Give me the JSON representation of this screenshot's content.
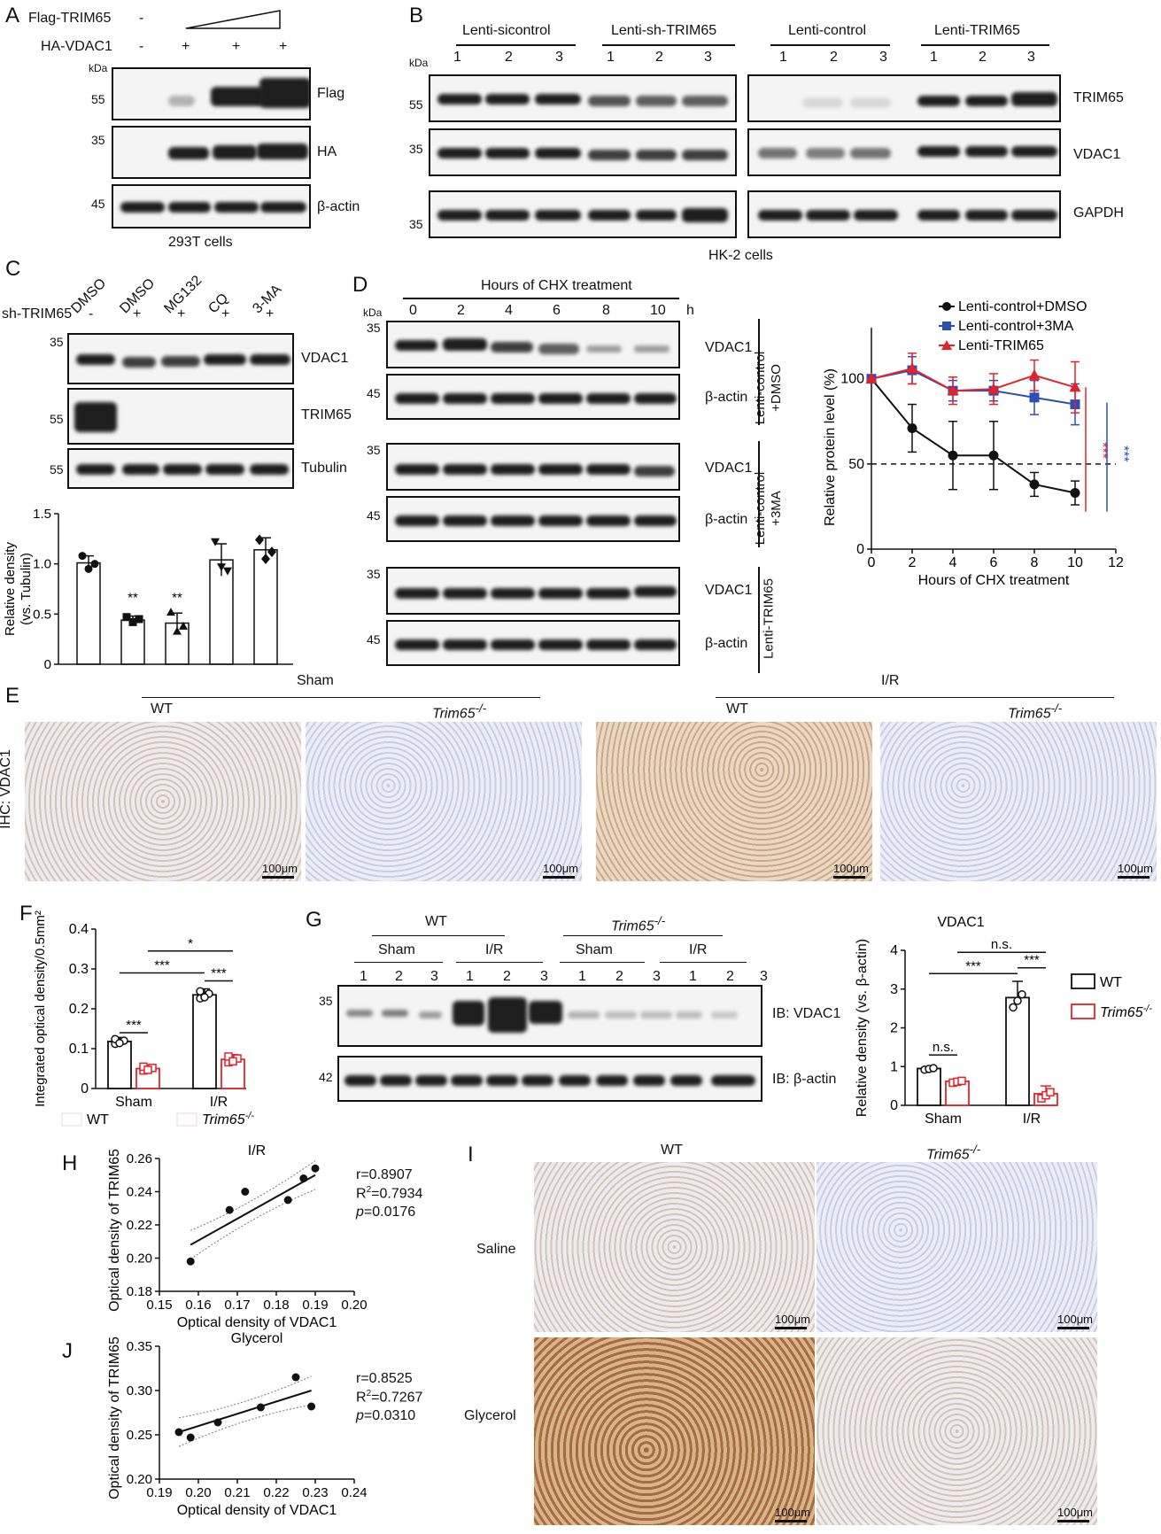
{
  "panelA": {
    "label": "A",
    "row_flag": "Flag-TRIM65",
    "row_ha": "HA-VDAC1",
    "flag_signs": [
      "-"
    ],
    "ha_signs": [
      "-",
      "+",
      "+",
      "+"
    ],
    "kda": "kDa",
    "mw": [
      "55",
      "35",
      "45"
    ],
    "blots": [
      "Flag",
      "HA",
      "β-actin"
    ],
    "caption": "293T cells"
  },
  "panelB": {
    "label": "B",
    "groups": [
      "Lenti-sicontrol",
      "Lenti-sh-TRIM65",
      "Lenti-control",
      "Lenti-TRIM65"
    ],
    "lanes": [
      "1",
      "2",
      "3"
    ],
    "kda": "kDa",
    "mw": [
      "55",
      "35",
      "35"
    ],
    "blots": [
      "TRIM65",
      "VDAC1",
      "GAPDH"
    ],
    "caption": "HK-2 cells"
  },
  "panelC": {
    "label": "C",
    "treatments": [
      "DMSO",
      "DMSO",
      "MG132",
      "CQ",
      "3-MA"
    ],
    "sh_label": "sh-TRIM65",
    "sh_signs": [
      "-",
      "+",
      "+",
      "+",
      "+"
    ],
    "mw": [
      "35",
      "55",
      "55"
    ],
    "blots": [
      "VDAC1",
      "TRIM65",
      "Tubulin"
    ],
    "sig": [
      "**",
      "**"
    ]
  },
  "panelD": {
    "label": "D",
    "header": "Hours of CHX treatment",
    "hours": [
      "0",
      "2",
      "4",
      "6",
      "8",
      "10"
    ],
    "h": "h",
    "kda": "kDa",
    "mw": [
      "35",
      "45",
      "35",
      "45",
      "35",
      "45"
    ],
    "blots": [
      "VDAC1",
      "β-actin",
      "VDAC1",
      "β-actin",
      "VDAC1",
      "β-actin"
    ],
    "groups": [
      "Lenti-control +DMSO",
      "Lenti-control +3MA",
      "Lenti-TRIM65"
    ],
    "sig_red": "***",
    "sig_blue": "***"
  },
  "panelE": {
    "label": "E",
    "sham": "Sham",
    "ir": "I/R",
    "wt": "WT",
    "ko": "Trim65",
    "ko_sup": "-/-",
    "ylabel": "IHC: VDAC1",
    "scale": "100μm"
  },
  "panelF": {
    "label": "F",
    "sig": [
      "*",
      "***",
      "***",
      "***"
    ],
    "legend": [
      "WT",
      "Trim65"
    ],
    "legend_sup": "-/-"
  },
  "panelG": {
    "label": "G",
    "wt": "WT",
    "ko": "Trim65",
    "ko_sup": "-/-",
    "subgroups": [
      "Sham",
      "I/R",
      "Sham",
      "I/R"
    ],
    "lanes": [
      "1",
      "2",
      "3"
    ],
    "mw": [
      "35",
      "42"
    ],
    "blots": [
      "IB: VDAC1",
      "IB: β-actin"
    ],
    "sig": [
      "n.s.",
      "***",
      "***",
      "n.s."
    ],
    "legend": [
      "WT",
      "Trim65"
    ],
    "legend_sup": "-/-"
  },
  "panelH": {
    "label": "H",
    "stats": [
      "r=0.8907",
      "0.7934",
      "=0.0176"
    ]
  },
  "panelI": {
    "label": "I",
    "wt": "WT",
    "ko": "Trim65",
    "ko_sup": "-/-",
    "rows": [
      "Saline",
      "Glycerol"
    ],
    "scale": "100μm"
  },
  "panelJ": {
    "label": "J",
    "stats": [
      "r=0.8525",
      "0.7267",
      "=0.0310"
    ]
  },
  "chart_data": [
    {
      "id": "C-bar",
      "type": "bar",
      "categories": [
        "DMSO",
        "DMSO+sh",
        "MG132",
        "CQ",
        "3-MA"
      ],
      "values": [
        1.01,
        0.44,
        0.41,
        1.04,
        1.14
      ],
      "errors": [
        0.07,
        0.04,
        0.1,
        0.16,
        0.12
      ],
      "points": [
        [
          1.08,
          0.95,
          1.0
        ],
        [
          0.47,
          0.42,
          0.45
        ],
        [
          0.52,
          0.33,
          0.38
        ],
        [
          1.22,
          0.97,
          0.93
        ],
        [
          1.24,
          1.05,
          1.12
        ]
      ],
      "ylabel": "Relative density (vs. Tubulin)",
      "yticks": [
        "0",
        "0.5",
        "1.0",
        "1.5"
      ],
      "ylim": [
        0,
        1.5
      ]
    },
    {
      "id": "D-line",
      "type": "line",
      "x": [
        0,
        2,
        4,
        6,
        8,
        10
      ],
      "series": [
        {
          "name": "Lenti-control+DMSO",
          "color": "#111111",
          "marker": "circle",
          "values": [
            100,
            71,
            55,
            55,
            38,
            33
          ],
          "errors": [
            0,
            14,
            20,
            20,
            7,
            7
          ]
        },
        {
          "name": "Lenti-control+3MA",
          "color": "#2b4fb5",
          "marker": "square",
          "values": [
            100,
            105,
            93,
            93,
            89,
            85
          ],
          "errors": [
            0,
            8,
            6,
            6,
            10,
            12
          ]
        },
        {
          "name": "Lenti-TRIM65",
          "color": "#e3232b",
          "marker": "triangle",
          "values": [
            100,
            106,
            93,
            94,
            102,
            95
          ],
          "errors": [
            0,
            9,
            8,
            9,
            9,
            15
          ]
        }
      ],
      "xlabel": "Hours of CHX treatment",
      "ylabel": "Relative protein level (%)",
      "xticks": [
        "0",
        "2",
        "4",
        "6",
        "8",
        "10",
        "12"
      ],
      "yticks": [
        "0",
        "50",
        "100"
      ],
      "xlim": [
        0,
        12
      ],
      "ylim": [
        0,
        130
      ],
      "reference_line": 50
    },
    {
      "id": "F-bar",
      "type": "bar",
      "categories": [
        "Sham",
        "I/R"
      ],
      "series": [
        {
          "name": "WT",
          "color": "#111111",
          "values": [
            0.118,
            0.235
          ],
          "errors": [
            0.01,
            0.015
          ]
        },
        {
          "name": "Trim65-/-",
          "color": "#e3232b",
          "values": [
            0.05,
            0.073
          ],
          "errors": [
            0.008,
            0.012
          ]
        }
      ],
      "ylabel": "Integrated optical density/0.5mm²",
      "yticks": [
        "0",
        "0.1",
        "0.2",
        "0.3",
        "0.4"
      ],
      "ylim": [
        0,
        0.4
      ]
    },
    {
      "id": "G-bar",
      "type": "bar",
      "title": "VDAC1",
      "categories": [
        "Sham",
        "I/R"
      ],
      "series": [
        {
          "name": "WT",
          "color": "#111111",
          "values": [
            0.95,
            2.78
          ],
          "errors": [
            0.05,
            0.42
          ]
        },
        {
          "name": "Trim65-/-",
          "color": "#e3232b",
          "values": [
            0.62,
            0.3
          ],
          "errors": [
            0.06,
            0.2
          ]
        }
      ],
      "ylabel": "Relative density (vs. β-actin)",
      "yticks": [
        "0",
        "1",
        "2",
        "3",
        "4"
      ],
      "ylim": [
        0,
        4
      ]
    },
    {
      "id": "H-scatter",
      "type": "scatter",
      "title": "I/R",
      "points": [
        [
          0.158,
          0.198
        ],
        [
          0.168,
          0.229
        ],
        [
          0.172,
          0.24
        ],
        [
          0.183,
          0.235
        ],
        [
          0.187,
          0.248
        ],
        [
          0.19,
          0.254
        ]
      ],
      "fit": [
        [
          0.158,
          0.208
        ],
        [
          0.19,
          0.25
        ]
      ],
      "xlabel": "Optical density of VDAC1",
      "ylabel": "Optical density of TRIM65",
      "xticks": [
        "0.15",
        "0.16",
        "0.17",
        "0.18",
        "0.19",
        "0.20"
      ],
      "yticks": [
        "0.18",
        "0.20",
        "0.22",
        "0.24",
        "0.26"
      ],
      "xlim": [
        0.15,
        0.2
      ],
      "ylim": [
        0.18,
        0.26
      ]
    },
    {
      "id": "J-scatter",
      "type": "scatter",
      "title": "Glycerol",
      "points": [
        [
          0.195,
          0.253
        ],
        [
          0.198,
          0.247
        ],
        [
          0.205,
          0.264
        ],
        [
          0.216,
          0.281
        ],
        [
          0.225,
          0.315
        ],
        [
          0.229,
          0.282
        ]
      ],
      "fit": [
        [
          0.195,
          0.253
        ],
        [
          0.229,
          0.3
        ]
      ],
      "xlabel": "Optical density of VDAC1",
      "ylabel": "Optical density of TRIM65",
      "xticks": [
        "0.19",
        "0.20",
        "0.21",
        "0.22",
        "0.23",
        "0.24"
      ],
      "yticks": [
        "0.20",
        "0.25",
        "0.30",
        "0.35"
      ],
      "xlim": [
        0.19,
        0.24
      ],
      "ylim": [
        0.2,
        0.35
      ]
    }
  ]
}
